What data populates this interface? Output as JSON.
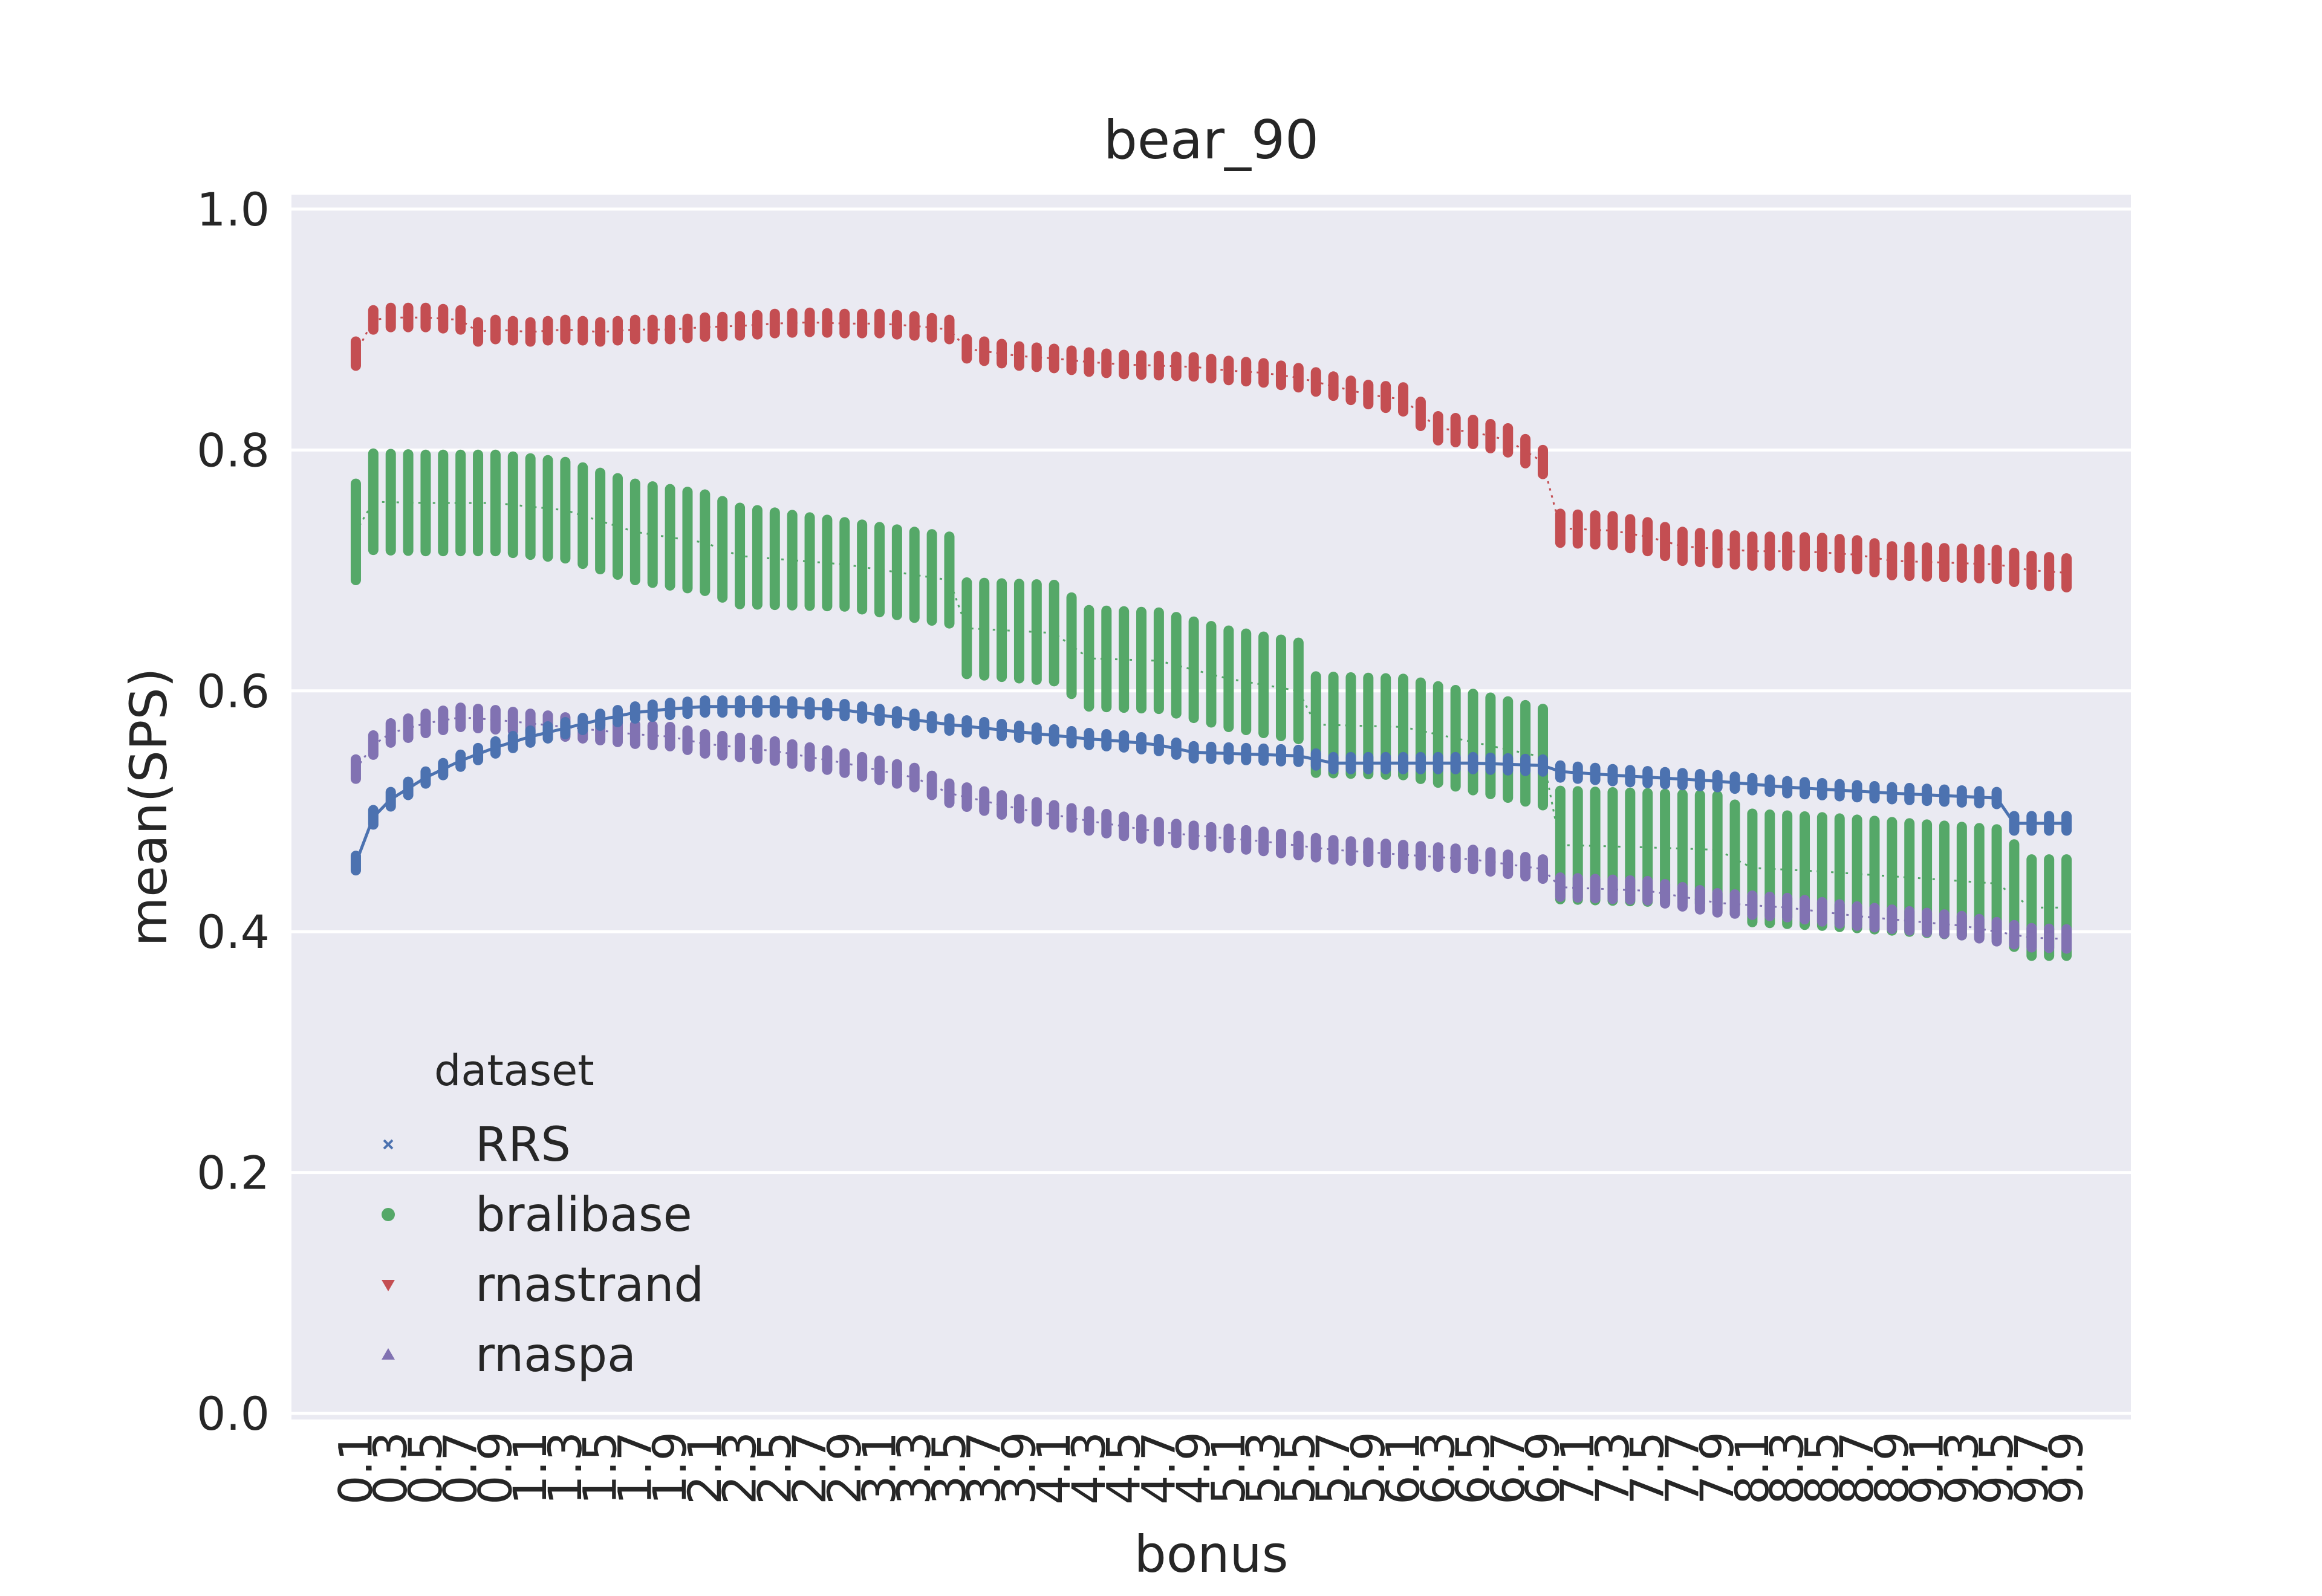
{
  "chart_data": {
    "type": "line",
    "title": "bear_90",
    "xlabel": "bonus",
    "ylabel": "mean(SPS)",
    "ylim": [
      0.0,
      1.0
    ],
    "yticks": [
      "0.0",
      "0.2",
      "0.4",
      "0.6",
      "0.8",
      "1.0"
    ],
    "ytick_values": [
      0.0,
      0.2,
      0.4,
      0.6,
      0.8,
      1.0
    ],
    "x_range": [
      0.1,
      9.9
    ],
    "x_step": 0.1,
    "xticks": [
      "0.1",
      "0.3",
      "0.5",
      "0.7",
      "0.9",
      "1.1",
      "1.3",
      "1.5",
      "1.7",
      "1.9",
      "2.1",
      "2.3",
      "2.5",
      "2.7",
      "2.9",
      "3.1",
      "3.3",
      "3.5",
      "3.7",
      "3.9",
      "4.1",
      "4.3",
      "4.5",
      "4.7",
      "4.9",
      "5.1",
      "5.3",
      "5.5",
      "5.7",
      "5.9",
      "6.1",
      "6.3",
      "6.5",
      "6.7",
      "6.9",
      "7.1",
      "7.3",
      "7.5",
      "7.7",
      "7.9",
      "8.1",
      "8.3",
      "8.5",
      "8.7",
      "8.9",
      "9.1",
      "9.3",
      "9.5",
      "9.7",
      "9.9"
    ],
    "grid": true,
    "background": "#eaeaf2",
    "legend": {
      "title": "dataset",
      "placement": "lower-left"
    },
    "series": [
      {
        "name": "RRS",
        "color": "#4c72b0",
        "marker": "x",
        "x": [
          0.1,
          0.2,
          0.3,
          0.5,
          0.7,
          0.9,
          1.1,
          1.3,
          1.5,
          1.7,
          1.9,
          2.1,
          2.5,
          2.9,
          3.1,
          3.5,
          3.9,
          4.3,
          4.5,
          4.7,
          4.9,
          5.1,
          5.3,
          5.5,
          5.7,
          5.9,
          6.5,
          6.9,
          7.0,
          7.3,
          7.9,
          8.3,
          8.9,
          9.5,
          9.6,
          9.9
        ],
        "y": [
          0.457,
          0.495,
          0.51,
          0.528,
          0.542,
          0.553,
          0.562,
          0.569,
          0.576,
          0.582,
          0.585,
          0.587,
          0.587,
          0.584,
          0.58,
          0.572,
          0.566,
          0.56,
          0.558,
          0.555,
          0.549,
          0.548,
          0.547,
          0.546,
          0.54,
          0.54,
          0.54,
          0.538,
          0.533,
          0.53,
          0.525,
          0.52,
          0.515,
          0.511,
          0.49,
          0.49
        ],
        "band": [
          0.006,
          0.006,
          0.006,
          0.005,
          0.005,
          0.005,
          0.005,
          0.005,
          0.005,
          0.005,
          0.005,
          0.005,
          0.005,
          0.005,
          0.005,
          0.005,
          0.005,
          0.005,
          0.005,
          0.005,
          0.005,
          0.005,
          0.005,
          0.005,
          0.005,
          0.005,
          0.005,
          0.005,
          0.005,
          0.005,
          0.005,
          0.005,
          0.005,
          0.005,
          0.006,
          0.006
        ]
      },
      {
        "name": "bralibase",
        "color": "#55a868",
        "marker": "o",
        "x": [
          0.1,
          0.2,
          0.5,
          0.9,
          1.3,
          1.7,
          2.1,
          2.3,
          2.9,
          3.5,
          3.6,
          4.1,
          4.3,
          4.7,
          5.1,
          5.5,
          5.6,
          6.1,
          6.9,
          7.0,
          7.5,
          7.9,
          8.1,
          8.5,
          9.1,
          9.5,
          9.7,
          9.9
        ],
        "y": [
          0.732,
          0.757,
          0.756,
          0.756,
          0.75,
          0.732,
          0.723,
          0.712,
          0.705,
          0.692,
          0.652,
          0.648,
          0.627,
          0.625,
          0.61,
          0.6,
          0.572,
          0.57,
          0.545,
          0.472,
          0.47,
          0.468,
          0.453,
          0.45,
          0.444,
          0.44,
          0.42,
          0.42
        ],
        "band": [
          0.04,
          0.04,
          0.04,
          0.04,
          0.04,
          0.04,
          0.04,
          0.04,
          0.035,
          0.036,
          0.038,
          0.04,
          0.04,
          0.04,
          0.04,
          0.04,
          0.04,
          0.04,
          0.04,
          0.045,
          0.045,
          0.045,
          0.045,
          0.045,
          0.045,
          0.045,
          0.04,
          0.04
        ]
      },
      {
        "name": "rnastrand",
        "color": "#c44e52",
        "marker": "v",
        "x": [
          0.1,
          0.2,
          0.3,
          0.5,
          0.7,
          0.8,
          0.9,
          1.1,
          1.3,
          1.5,
          1.7,
          1.9,
          2.1,
          2.3,
          2.5,
          2.7,
          2.9,
          3.1,
          3.3,
          3.5,
          3.6,
          3.9,
          4.1,
          4.3,
          4.5,
          4.7,
          4.9,
          5.1,
          5.3,
          5.5,
          5.7,
          5.9,
          6.1,
          6.3,
          6.5,
          6.7,
          6.9,
          7.0,
          7.3,
          7.5,
          7.7,
          7.9,
          8.1,
          8.3,
          8.5,
          8.7,
          8.9,
          9.1,
          9.3,
          9.5,
          9.7,
          9.9
        ],
        "y": [
          0.88,
          0.908,
          0.91,
          0.91,
          0.908,
          0.898,
          0.9,
          0.898,
          0.9,
          0.898,
          0.9,
          0.9,
          0.902,
          0.903,
          0.905,
          0.906,
          0.905,
          0.905,
          0.903,
          0.9,
          0.884,
          0.878,
          0.876,
          0.873,
          0.871,
          0.87,
          0.869,
          0.866,
          0.864,
          0.86,
          0.853,
          0.846,
          0.842,
          0.818,
          0.815,
          0.808,
          0.79,
          0.735,
          0.733,
          0.728,
          0.72,
          0.718,
          0.716,
          0.716,
          0.715,
          0.713,
          0.708,
          0.707,
          0.706,
          0.705,
          0.7,
          0.698
        ],
        "band": [
          0.01,
          0.008,
          0.008,
          0.008,
          0.008,
          0.008,
          0.008,
          0.008,
          0.008,
          0.008,
          0.008,
          0.008,
          0.008,
          0.008,
          0.008,
          0.008,
          0.008,
          0.008,
          0.008,
          0.008,
          0.008,
          0.008,
          0.008,
          0.008,
          0.008,
          0.008,
          0.008,
          0.008,
          0.008,
          0.008,
          0.008,
          0.008,
          0.01,
          0.01,
          0.01,
          0.01,
          0.01,
          0.012,
          0.012,
          0.012,
          0.012,
          0.012,
          0.012,
          0.012,
          0.012,
          0.012,
          0.012,
          0.012,
          0.012,
          0.012,
          0.012,
          0.012
        ]
      },
      {
        "name": "rnaspa",
        "color": "#8172b2",
        "marker": "^",
        "x": [
          0.1,
          0.2,
          0.3,
          0.5,
          0.7,
          0.9,
          1.3,
          1.7,
          1.9,
          2.1,
          2.5,
          2.9,
          3.1,
          3.3,
          3.5,
          3.9,
          4.3,
          4.7,
          4.9,
          5.3,
          5.7,
          6.1,
          6.5,
          6.9,
          7.0,
          7.5,
          7.9,
          8.3,
          8.7,
          9.3,
          9.7,
          9.9
        ],
        "y": [
          0.535,
          0.555,
          0.565,
          0.573,
          0.578,
          0.576,
          0.57,
          0.564,
          0.562,
          0.556,
          0.55,
          0.54,
          0.534,
          0.528,
          0.515,
          0.502,
          0.492,
          0.483,
          0.48,
          0.475,
          0.468,
          0.464,
          0.46,
          0.452,
          0.437,
          0.434,
          0.424,
          0.42,
          0.413,
          0.405,
          0.395,
          0.394
        ]
      }
    ]
  }
}
